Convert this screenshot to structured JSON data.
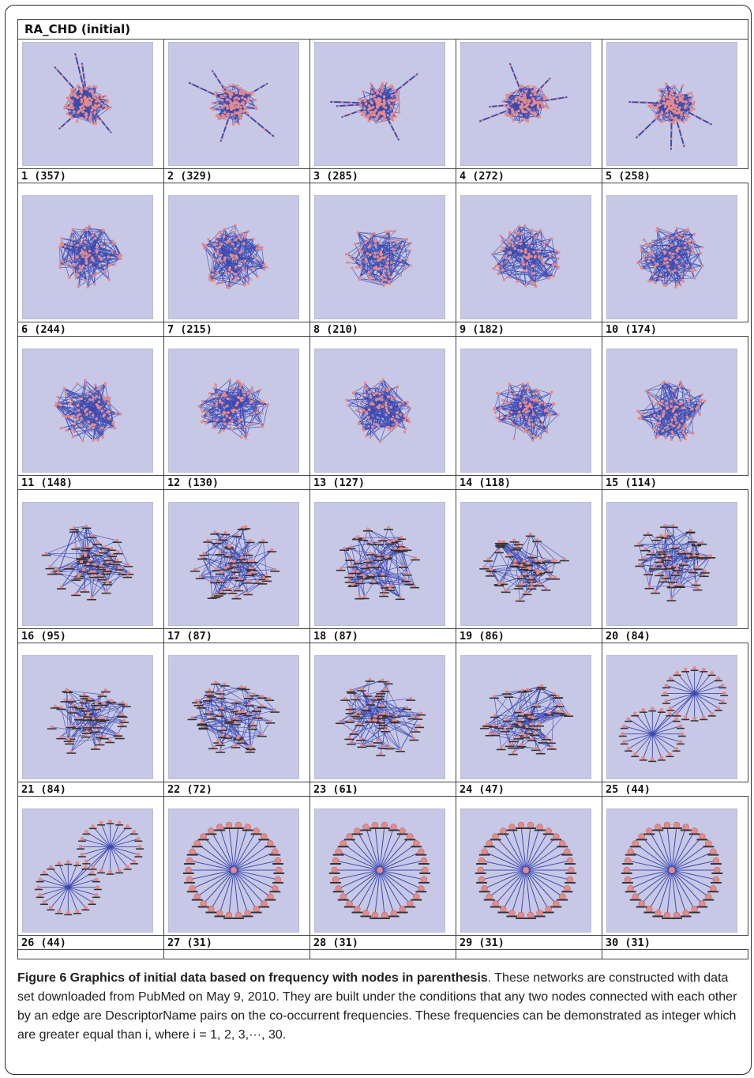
{
  "figure": {
    "panel_title": "RA_CHD (initial)",
    "caption_title": "Figure 6 Graphics of initial data based on frequency with nodes in parenthesis",
    "caption_body": ". These networks are constructed with data set downloaded from PubMed on May 9, 2010. They are built under the conditions that any two nodes connected with each other by an edge are DescriptorName pairs on the co-occurrent frequencies. These frequencies can be demonstrated as integer which are greater equal than i, where i = 1, 2, 3,···, 30."
  },
  "panels": [
    {
      "label": "1 (357)",
      "style": "sparse-hairball"
    },
    {
      "label": "2 (329)",
      "style": "sparse-hairball"
    },
    {
      "label": "3 (285)",
      "style": "sparse-hairball"
    },
    {
      "label": "4 (272)",
      "style": "sparse-hairball"
    },
    {
      "label": "5 (258)",
      "style": "sparse-hairball"
    },
    {
      "label": "6 (244)",
      "style": "dense-cluster"
    },
    {
      "label": "7 (215)",
      "style": "dense-cluster"
    },
    {
      "label": "8 (210)",
      "style": "dense-cluster"
    },
    {
      "label": "9 (182)",
      "style": "dense-cluster"
    },
    {
      "label": "10 (174)",
      "style": "dense-cluster"
    },
    {
      "label": "11 (148)",
      "style": "dense-cluster"
    },
    {
      "label": "12 (130)",
      "style": "dense-cluster"
    },
    {
      "label": "13 (127)",
      "style": "dense-cluster"
    },
    {
      "label": "14 (118)",
      "style": "dense-cluster"
    },
    {
      "label": "15 (114)",
      "style": "dense-cluster"
    },
    {
      "label": "16 (95)",
      "style": "labeled-network"
    },
    {
      "label": "17 (87)",
      "style": "labeled-network"
    },
    {
      "label": "18 (87)",
      "style": "labeled-network"
    },
    {
      "label": "19 (86)",
      "style": "labeled-network"
    },
    {
      "label": "20 (84)",
      "style": "labeled-network"
    },
    {
      "label": "21 (84)",
      "style": "labeled-network"
    },
    {
      "label": "22 (72)",
      "style": "labeled-network"
    },
    {
      "label": "23 (61)",
      "style": "labeled-network"
    },
    {
      "label": "24 (47)",
      "style": "labeled-network"
    },
    {
      "label": "25 (44)",
      "style": "two-stars"
    },
    {
      "label": "26 (44)",
      "style": "two-stars"
    },
    {
      "label": "27 (31)",
      "style": "ring-star"
    },
    {
      "label": "28 (31)",
      "style": "ring-star"
    },
    {
      "label": "29 (31)",
      "style": "ring-star"
    },
    {
      "label": "30 (31)",
      "style": "ring-star"
    }
  ],
  "colors": {
    "panel_bg": "#c7c8e6",
    "edge": "#3b49b0",
    "node": "#e58a8a"
  }
}
